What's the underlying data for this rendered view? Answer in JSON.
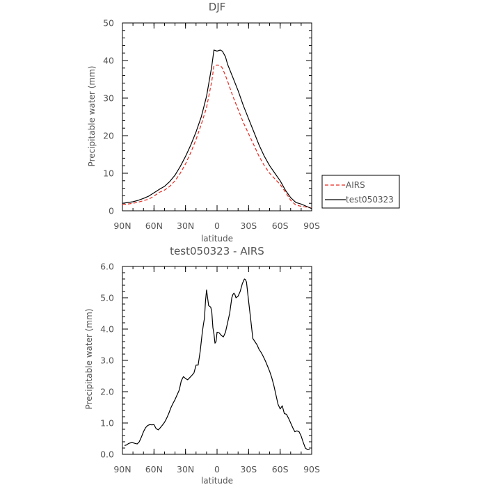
{
  "chart_data": [
    {
      "type": "line",
      "title": "DJF",
      "xlabel": "latitude",
      "ylabel": "Precipitable water (mm)",
      "xlim": [
        90,
        -90
      ],
      "ylim": [
        0,
        50
      ],
      "x_ticks": [
        90,
        60,
        30,
        0,
        -30,
        -60,
        -90
      ],
      "x_tick_labels": [
        "90N",
        "60N",
        "30N",
        "0",
        "30S",
        "60S",
        "90S"
      ],
      "y_ticks": [
        0,
        10,
        20,
        30,
        40,
        50
      ],
      "y_tick_labels": [
        "0",
        "10",
        "20",
        "30",
        "40",
        "50"
      ],
      "legend": {
        "position": "right",
        "entries": [
          "AIRS",
          "test050323"
        ]
      },
      "series": [
        {
          "name": "AIRS",
          "color": "#e8281e",
          "style": "dashed",
          "x": [
            90,
            85,
            80,
            75,
            70,
            65,
            60,
            55,
            50,
            45,
            40,
            35,
            30,
            25,
            20,
            15,
            10,
            5,
            3,
            0,
            -3,
            -5,
            -8,
            -10,
            -15,
            -20,
            -25,
            -30,
            -35,
            -40,
            -45,
            -50,
            -55,
            -60,
            -65,
            -70,
            -75,
            -80,
            -85,
            -90
          ],
          "y": [
            1.7,
            1.8,
            2.0,
            2.3,
            2.7,
            3.1,
            3.9,
            4.9,
            5.5,
            6.5,
            8.0,
            10.0,
            12.5,
            15.5,
            19.0,
            23.0,
            27.5,
            34.5,
            38.6,
            38.8,
            38.7,
            38.0,
            36.0,
            34.5,
            30.5,
            27.0,
            23.5,
            20.5,
            17.5,
            14.5,
            12.0,
            10.0,
            8.5,
            7.0,
            5.0,
            2.8,
            1.5,
            1.2,
            1.0,
            0.7
          ]
        },
        {
          "name": "test050323",
          "color": "#000000",
          "style": "solid",
          "x": [
            90,
            85,
            80,
            75,
            70,
            65,
            60,
            55,
            50,
            45,
            40,
            35,
            30,
            25,
            20,
            15,
            10,
            5,
            3,
            0,
            -3,
            -5,
            -8,
            -10,
            -15,
            -20,
            -25,
            -30,
            -35,
            -40,
            -45,
            -50,
            -55,
            -60,
            -65,
            -70,
            -75,
            -80,
            -85,
            -90
          ],
          "y": [
            2.0,
            2.2,
            2.4,
            2.8,
            3.3,
            3.9,
            4.8,
            5.7,
            6.5,
            7.8,
            9.5,
            11.8,
            14.5,
            17.5,
            21.0,
            25.0,
            30.5,
            38.5,
            42.8,
            42.5,
            42.8,
            42.5,
            41.0,
            39.0,
            35.5,
            32.0,
            28.0,
            24.5,
            21.0,
            17.5,
            14.5,
            12.0,
            10.0,
            8.0,
            5.5,
            3.5,
            2.2,
            1.8,
            1.2,
            0.6
          ]
        }
      ]
    },
    {
      "type": "line",
      "title": "test050323 - AIRS",
      "xlabel": "latitude",
      "ylabel": "Precipitable water (mm)",
      "xlim": [
        90,
        -90
      ],
      "ylim": [
        0,
        6
      ],
      "x_ticks": [
        90,
        60,
        30,
        0,
        -30,
        -60,
        -90
      ],
      "x_tick_labels": [
        "90N",
        "60N",
        "30N",
        "0",
        "30S",
        "60S",
        "90S"
      ],
      "y_ticks": [
        0,
        1,
        2,
        3,
        4,
        5,
        6
      ],
      "y_tick_labels": [
        "0.0",
        "1.0",
        "2.0",
        "3.0",
        "4.0",
        "5.0",
        "6.0"
      ],
      "series": [
        {
          "name": "",
          "color": "#000000",
          "style": "solid",
          "x": [
            88,
            86,
            84,
            82,
            80,
            78,
            76,
            74,
            72,
            70,
            68,
            66,
            64,
            62,
            60,
            58,
            56,
            54,
            52,
            50,
            48,
            46,
            44,
            42,
            40,
            38,
            36,
            34,
            32,
            30,
            28,
            26,
            24,
            22,
            20,
            18,
            16,
            14,
            13,
            12,
            11,
            10,
            8,
            6,
            5,
            4,
            3,
            2,
            1,
            0,
            -2,
            -4,
            -6,
            -8,
            -10,
            -12,
            -14,
            -15,
            -16,
            -17,
            -18,
            -20,
            -22,
            -24,
            -26,
            -27,
            -28,
            -30,
            -32,
            -34,
            -36,
            -38,
            -40,
            -42,
            -44,
            -46,
            -48,
            -50,
            -52,
            -54,
            -56,
            -58,
            -60,
            -62,
            -64,
            -66,
            -68,
            -70,
            -72,
            -74,
            -76,
            -78,
            -80,
            -82,
            -84,
            -86,
            -88
          ],
          "y": [
            0.28,
            0.3,
            0.35,
            0.37,
            0.37,
            0.35,
            0.33,
            0.4,
            0.55,
            0.72,
            0.85,
            0.92,
            0.95,
            0.94,
            0.95,
            0.82,
            0.78,
            0.85,
            0.93,
            1.02,
            1.15,
            1.3,
            1.48,
            1.62,
            1.75,
            1.9,
            2.05,
            2.35,
            2.48,
            2.42,
            2.38,
            2.45,
            2.52,
            2.6,
            2.85,
            2.85,
            3.3,
            3.9,
            4.15,
            4.35,
            4.9,
            5.25,
            4.75,
            4.7,
            4.55,
            4.05,
            3.85,
            3.55,
            3.6,
            3.9,
            3.88,
            3.8,
            3.75,
            3.9,
            4.2,
            4.5,
            5.0,
            5.1,
            5.15,
            5.1,
            5.0,
            5.05,
            5.2,
            5.45,
            5.6,
            5.58,
            5.5,
            4.9,
            4.3,
            3.7,
            3.6,
            3.5,
            3.35,
            3.25,
            3.12,
            2.98,
            2.82,
            2.65,
            2.45,
            2.2,
            1.9,
            1.6,
            1.45,
            1.55,
            1.3,
            1.28,
            1.15,
            1.0,
            0.85,
            0.72,
            0.75,
            0.72,
            0.58,
            0.38,
            0.2,
            0.15,
            0.15
          ]
        }
      ]
    }
  ]
}
